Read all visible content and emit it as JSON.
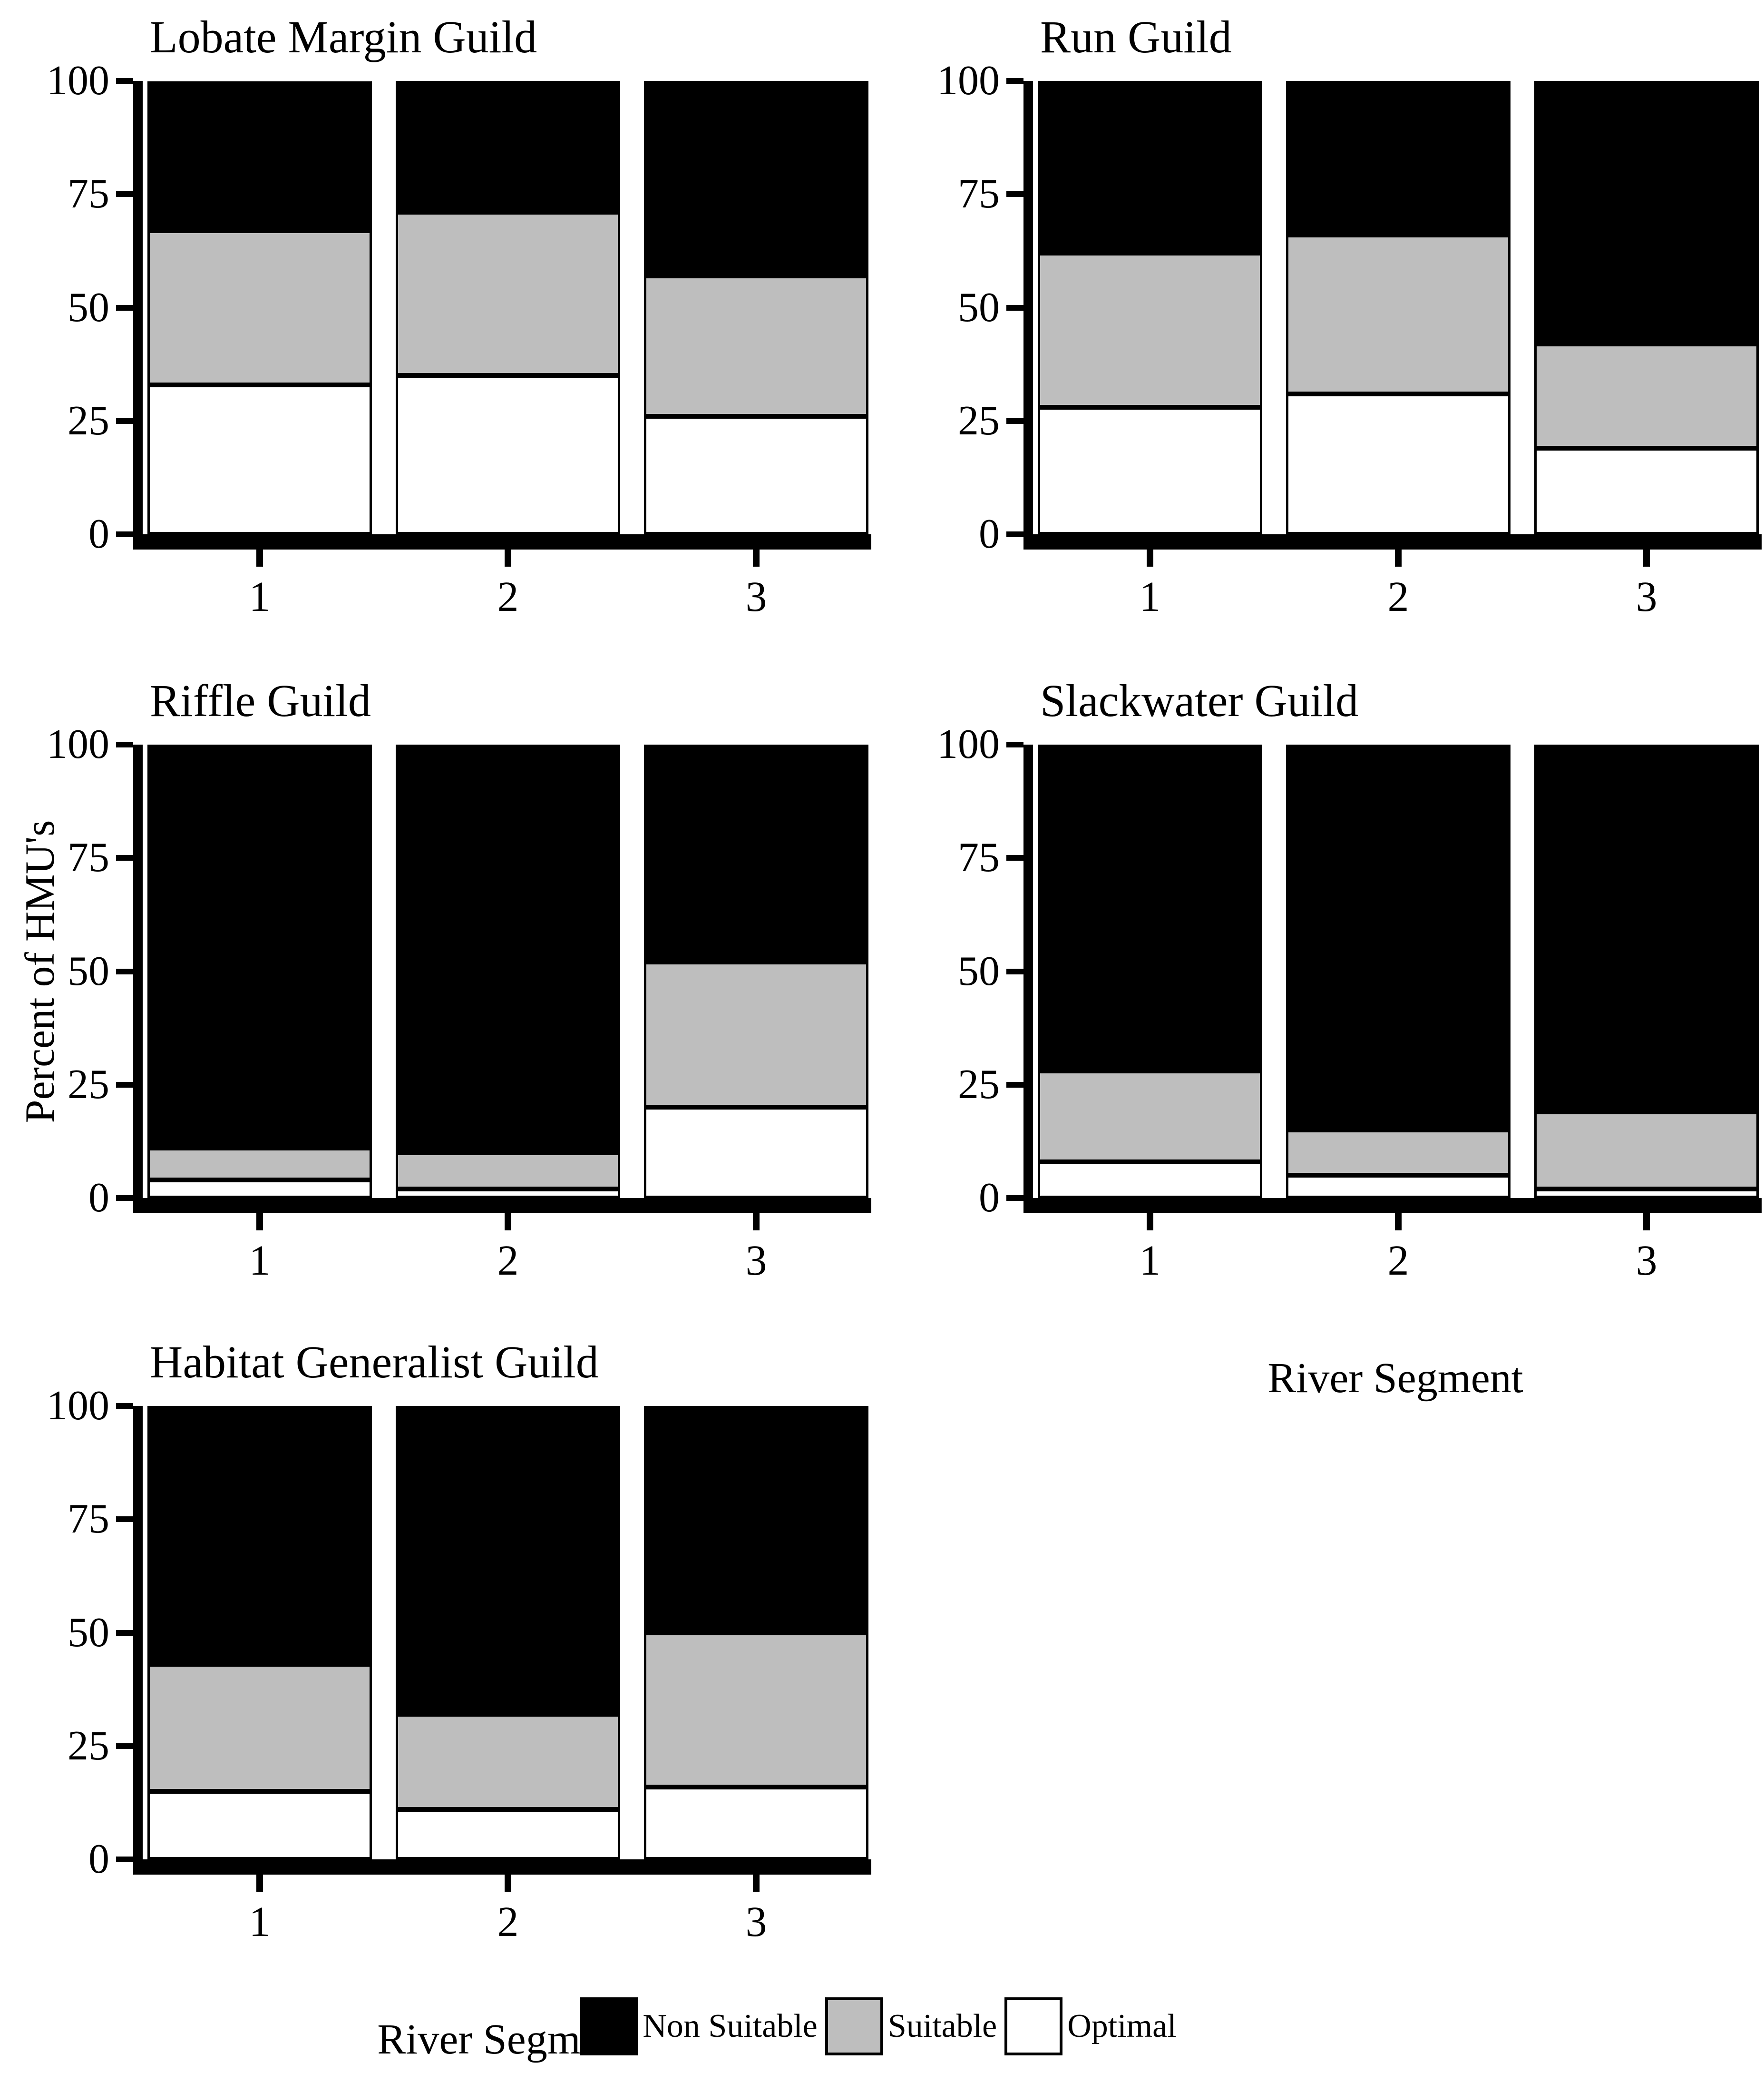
{
  "figure": {
    "ylabel": "Percent of HMU's",
    "xlabel": "River Segment",
    "background": "#ffffff",
    "colors": {
      "non_suitable": "#000000",
      "suitable": "#bebebe",
      "optimal": "#ffffff"
    }
  },
  "axis": {
    "y_ticks": [
      "0",
      "25",
      "50",
      "75",
      "100"
    ],
    "y_tick_values": [
      0,
      25,
      50,
      75,
      100
    ],
    "ylim": [
      0,
      100
    ],
    "x_categories": [
      "1",
      "2",
      "3"
    ]
  },
  "legend": {
    "items": [
      {
        "label": "Non Suitable",
        "key": "non_suitable",
        "color": "#000000"
      },
      {
        "label": "Suitable",
        "key": "suitable",
        "color": "#bebebe"
      },
      {
        "label": "Optimal",
        "key": "optimal",
        "color": "#ffffff"
      }
    ]
  },
  "chart_data": [
    {
      "type": "bar",
      "stacked": true,
      "title": "Lobate Margin Guild",
      "categories": [
        "1",
        "2",
        "3"
      ],
      "series": [
        {
          "name": "Optimal",
          "key": "optimal",
          "values": [
            33,
            35,
            26
          ]
        },
        {
          "name": "Suitable",
          "key": "suitable",
          "values": [
            34,
            36,
            31
          ]
        },
        {
          "name": "Non Suitable",
          "key": "non_suitable",
          "values": [
            33,
            29,
            43
          ]
        }
      ],
      "xlabel": "",
      "ylabel": "",
      "ylim": [
        0,
        100
      ],
      "y_ticks": [
        0,
        25,
        50,
        75,
        100
      ],
      "grid": false,
      "legend_position": "bottom-center-of-figure"
    },
    {
      "type": "bar",
      "stacked": true,
      "title": "Run Guild",
      "categories": [
        "1",
        "2",
        "3"
      ],
      "series": [
        {
          "name": "Optimal",
          "key": "optimal",
          "values": [
            28,
            31,
            19
          ]
        },
        {
          "name": "Suitable",
          "key": "suitable",
          "values": [
            34,
            35,
            23
          ]
        },
        {
          "name": "Non Suitable",
          "key": "non_suitable",
          "values": [
            38,
            34,
            58
          ]
        }
      ],
      "xlabel": "",
      "ylabel": "",
      "ylim": [
        0,
        100
      ],
      "y_ticks": [
        0,
        25,
        50,
        75,
        100
      ],
      "grid": false
    },
    {
      "type": "bar",
      "stacked": true,
      "title": "Riffle Guild",
      "categories": [
        "1",
        "2",
        "3"
      ],
      "series": [
        {
          "name": "Optimal",
          "key": "optimal",
          "values": [
            4,
            2,
            20
          ]
        },
        {
          "name": "Suitable",
          "key": "suitable",
          "values": [
            7,
            8,
            32
          ]
        },
        {
          "name": "Non Suitable",
          "key": "non_suitable",
          "values": [
            89,
            90,
            48
          ]
        }
      ],
      "xlabel": "",
      "ylabel": "",
      "ylim": [
        0,
        100
      ],
      "y_ticks": [
        0,
        25,
        50,
        75,
        100
      ],
      "grid": false
    },
    {
      "type": "bar",
      "stacked": true,
      "title": "Slackwater Guild",
      "categories": [
        "1",
        "2",
        "3"
      ],
      "series": [
        {
          "name": "Optimal",
          "key": "optimal",
          "values": [
            8,
            5,
            2
          ]
        },
        {
          "name": "Suitable",
          "key": "suitable",
          "values": [
            20,
            10,
            17
          ]
        },
        {
          "name": "Non Suitable",
          "key": "non_suitable",
          "values": [
            72,
            85,
            81
          ]
        }
      ],
      "xlabel": "River Segment",
      "ylabel": "",
      "ylim": [
        0,
        100
      ],
      "y_ticks": [
        0,
        25,
        50,
        75,
        100
      ],
      "grid": false
    },
    {
      "type": "bar",
      "stacked": true,
      "title": "Habitat Generalist Guild",
      "categories": [
        "1",
        "2",
        "3"
      ],
      "series": [
        {
          "name": "Optimal",
          "key": "optimal",
          "values": [
            15,
            11,
            16
          ]
        },
        {
          "name": "Suitable",
          "key": "suitable",
          "values": [
            28,
            21,
            34
          ]
        },
        {
          "name": "Non Suitable",
          "key": "non_suitable",
          "values": [
            57,
            68,
            50
          ]
        }
      ],
      "xlabel": "River Segment",
      "ylabel": "",
      "ylim": [
        0,
        100
      ],
      "y_ticks": [
        0,
        25,
        50,
        75,
        100
      ],
      "grid": false
    }
  ]
}
